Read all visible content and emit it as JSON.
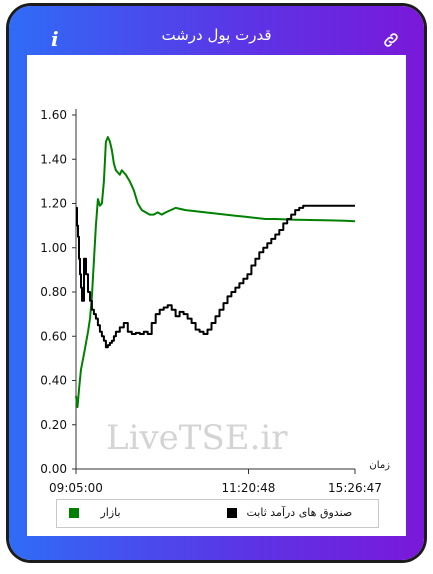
{
  "header": {
    "title": "قدرت پول درشت",
    "info_glyph": "i",
    "link_icon": "link-icon"
  },
  "colors": {
    "frame_start": "#2f6cf6",
    "frame_end": "#7a18d9",
    "market_line": "#008000",
    "fund_line": "#000000"
  },
  "watermark": "LiveTSE.ir",
  "chart_data": {
    "type": "line",
    "title": "",
    "xlabel": "زمان",
    "ylabel": "",
    "ylim": [
      0,
      1.6
    ],
    "yticks": [
      "0.00",
      "0.20",
      "0.40",
      "0.60",
      "0.80",
      "1.00",
      "1.20",
      "1.40",
      "1.60"
    ],
    "xticks": [
      "09:05:00",
      "11:20:48",
      "15:26:47"
    ],
    "grid": false,
    "legend_position": "bottom",
    "series": [
      {
        "name": "بازار",
        "color": "#008000",
        "x": [
          0,
          1.5,
          3,
          5,
          8,
          10,
          12,
          14,
          16,
          18,
          20,
          22,
          24,
          26,
          28,
          30,
          32,
          34,
          36,
          38,
          40,
          42,
          44,
          46,
          48,
          50,
          54,
          58,
          62,
          66,
          70,
          74,
          78,
          82,
          86,
          90,
          95,
          100,
          110,
          120,
          130,
          140,
          150,
          160,
          170,
          180,
          190,
          200,
          210,
          220,
          230,
          240,
          250,
          260,
          270,
          280
        ],
        "y": [
          0.33,
          0.28,
          0.36,
          0.45,
          0.52,
          0.57,
          0.62,
          0.68,
          0.78,
          0.94,
          1.1,
          1.22,
          1.19,
          1.2,
          1.3,
          1.48,
          1.5,
          1.48,
          1.44,
          1.38,
          1.35,
          1.34,
          1.33,
          1.35,
          1.34,
          1.33,
          1.3,
          1.26,
          1.2,
          1.17,
          1.16,
          1.15,
          1.15,
          1.16,
          1.15,
          1.16,
          1.17,
          1.18,
          1.17,
          1.165,
          1.16,
          1.155,
          1.15,
          1.145,
          1.14,
          1.135,
          1.13,
          1.13,
          1.128,
          1.127,
          1.126,
          1.125,
          1.124,
          1.123,
          1.122,
          1.12
        ]
      },
      {
        "name": "صندوق های درآمد ثابت",
        "color": "#000000",
        "x": [
          0,
          1,
          2,
          3,
          4,
          5,
          6,
          8,
          10,
          12,
          14,
          16,
          18,
          20,
          22,
          24,
          26,
          28,
          30,
          32,
          34,
          36,
          38,
          40,
          44,
          48,
          52,
          56,
          60,
          64,
          68,
          72,
          76,
          80,
          84,
          88,
          92,
          96,
          100,
          104,
          108,
          112,
          116,
          120,
          124,
          128,
          132,
          136,
          140,
          144,
          148,
          152,
          156,
          160,
          164,
          168,
          172,
          176,
          180,
          184,
          188,
          192,
          196,
          200,
          204,
          208,
          212,
          216,
          220,
          224,
          228,
          232,
          236,
          240,
          244,
          248,
          252,
          256,
          260,
          264,
          268,
          272,
          276,
          280
        ],
        "y": [
          1.18,
          1.1,
          1.05,
          0.95,
          0.88,
          0.82,
          0.76,
          0.95,
          0.88,
          0.8,
          0.76,
          0.72,
          0.7,
          0.68,
          0.65,
          0.62,
          0.6,
          0.58,
          0.55,
          0.56,
          0.57,
          0.58,
          0.6,
          0.62,
          0.64,
          0.66,
          0.62,
          0.61,
          0.615,
          0.61,
          0.62,
          0.61,
          0.66,
          0.7,
          0.72,
          0.73,
          0.74,
          0.72,
          0.69,
          0.71,
          0.7,
          0.68,
          0.66,
          0.63,
          0.62,
          0.61,
          0.63,
          0.66,
          0.69,
          0.72,
          0.75,
          0.78,
          0.8,
          0.82,
          0.84,
          0.86,
          0.88,
          0.92,
          0.95,
          0.98,
          1.0,
          1.02,
          1.04,
          1.06,
          1.08,
          1.11,
          1.13,
          1.15,
          1.17,
          1.18,
          1.19,
          1.19,
          1.19,
          1.19,
          1.19,
          1.19,
          1.19,
          1.19,
          1.19,
          1.19,
          1.19,
          1.19,
          1.19,
          1.19
        ]
      }
    ]
  }
}
